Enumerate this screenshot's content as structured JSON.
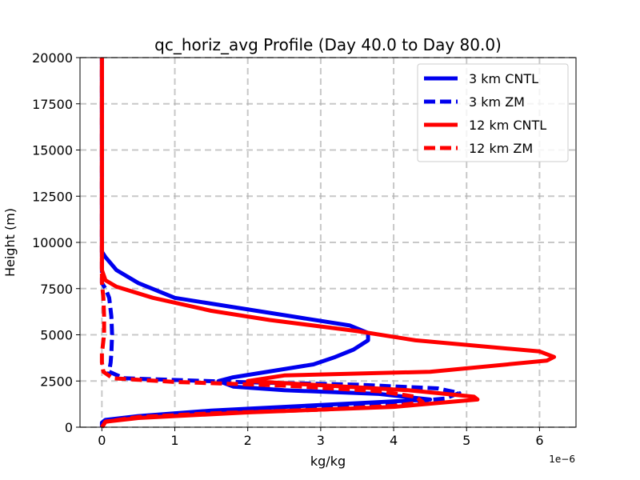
{
  "chart_data": {
    "type": "line",
    "title": "qc_horiz_avg Profile (Day 40.0 to Day 80.0)",
    "xlabel": "kg/kg",
    "ylabel": "Height (m)",
    "x_offset_label": "1e−6",
    "x_scale": 1e-06,
    "xlim": [
      -0.3,
      6.5
    ],
    "ylim": [
      0,
      20000
    ],
    "xticks": [
      0,
      1,
      2,
      3,
      4,
      5,
      6
    ],
    "xtick_labels": [
      "0",
      "1",
      "2",
      "3",
      "4",
      "5",
      "6"
    ],
    "yticks": [
      0,
      2500,
      5000,
      7500,
      10000,
      12500,
      15000,
      17500,
      20000
    ],
    "ytick_labels": [
      "0",
      "2500",
      "5000",
      "7500",
      "10000",
      "12500",
      "15000",
      "17500",
      "20000"
    ],
    "grid": true,
    "legend_position": "top-right",
    "series": [
      {
        "name": "3 km CNTL",
        "color": "#0000ee",
        "style": "solid",
        "points": [
          [
            0.0,
            0
          ],
          [
            0.0,
            250
          ],
          [
            0.05,
            400
          ],
          [
            0.5,
            600
          ],
          [
            1.5,
            900
          ],
          [
            3.0,
            1200
          ],
          [
            4.5,
            1500
          ],
          [
            3.8,
            1800
          ],
          [
            2.5,
            2000
          ],
          [
            1.8,
            2200
          ],
          [
            1.6,
            2500
          ],
          [
            1.8,
            2700
          ],
          [
            2.9,
            3400
          ],
          [
            3.2,
            3800
          ],
          [
            3.45,
            4200
          ],
          [
            3.65,
            4700
          ],
          [
            3.65,
            5100
          ],
          [
            3.4,
            5500
          ],
          [
            2.6,
            6000
          ],
          [
            1.8,
            6500
          ],
          [
            1.0,
            7000
          ],
          [
            0.5,
            7800
          ],
          [
            0.2,
            8500
          ],
          [
            0.05,
            9200
          ],
          [
            0.0,
            9500
          ],
          [
            0.0,
            20000
          ]
        ]
      },
      {
        "name": "3 km ZM",
        "color": "#0000ee",
        "style": "dashed",
        "points": [
          [
            0.0,
            0
          ],
          [
            0.05,
            350
          ],
          [
            0.5,
            550
          ],
          [
            1.5,
            800
          ],
          [
            2.8,
            1050
          ],
          [
            4.0,
            1300
          ],
          [
            4.7,
            1550
          ],
          [
            4.9,
            1850
          ],
          [
            4.6,
            2100
          ],
          [
            3.5,
            2300
          ],
          [
            1.8,
            2450
          ],
          [
            0.3,
            2650
          ],
          [
            0.1,
            3000
          ],
          [
            0.12,
            3500
          ],
          [
            0.13,
            4000
          ],
          [
            0.14,
            5000
          ],
          [
            0.13,
            6000
          ],
          [
            0.1,
            7000
          ],
          [
            0.05,
            7500
          ],
          [
            0.0,
            7800
          ],
          [
            0.0,
            20000
          ]
        ]
      },
      {
        "name": "12 km CNTL",
        "color": "#ff0000",
        "style": "solid",
        "points": [
          [
            0.0,
            0
          ],
          [
            0.05,
            300
          ],
          [
            0.5,
            500
          ],
          [
            2.0,
            800
          ],
          [
            4.0,
            1100
          ],
          [
            5.15,
            1500
          ],
          [
            5.1,
            1650
          ],
          [
            4.2,
            2000
          ],
          [
            2.0,
            2500
          ],
          [
            2.5,
            2800
          ],
          [
            4.5,
            3000
          ],
          [
            6.1,
            3600
          ],
          [
            6.2,
            3800
          ],
          [
            6.0,
            4100
          ],
          [
            4.3,
            4700
          ],
          [
            3.5,
            5200
          ],
          [
            2.3,
            5800
          ],
          [
            1.5,
            6300
          ],
          [
            0.7,
            7000
          ],
          [
            0.2,
            7600
          ],
          [
            0.05,
            7950
          ],
          [
            0.0,
            8500
          ],
          [
            0.0,
            20000
          ]
        ]
      },
      {
        "name": "12 km ZM",
        "color": "#ff0000",
        "style": "dashed",
        "points": [
          [
            0.0,
            0
          ],
          [
            0.05,
            300
          ],
          [
            0.5,
            550
          ],
          [
            1.5,
            750
          ],
          [
            3.0,
            950
          ],
          [
            4.0,
            1150
          ],
          [
            4.4,
            1350
          ],
          [
            4.3,
            1650
          ],
          [
            3.8,
            1950
          ],
          [
            2.5,
            2250
          ],
          [
            1.0,
            2450
          ],
          [
            0.15,
            2650
          ],
          [
            0.02,
            3000
          ],
          [
            0.0,
            3500
          ],
          [
            0.0,
            4000
          ],
          [
            0.03,
            5000
          ],
          [
            0.03,
            6000
          ],
          [
            0.02,
            7000
          ],
          [
            0.0,
            7800
          ],
          [
            0.0,
            20000
          ]
        ]
      }
    ]
  }
}
